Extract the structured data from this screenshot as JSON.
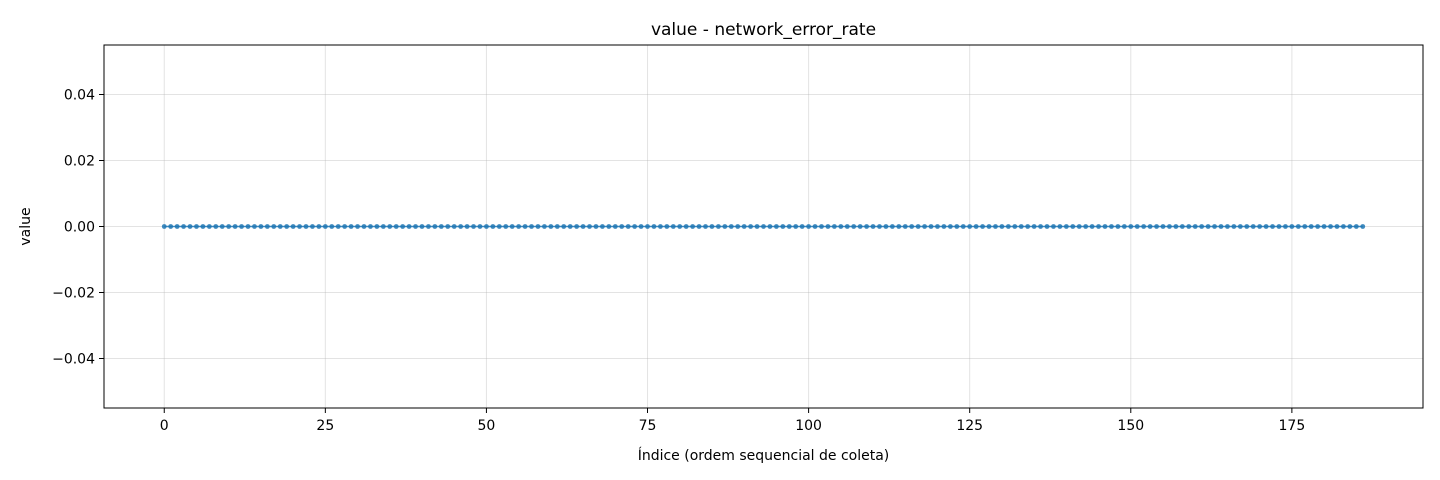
{
  "chart_data": {
    "type": "line",
    "title": "value - network_error_rate",
    "xlabel": "Índice (ordem sequencial de coleta)",
    "ylabel": "value",
    "xlim": [
      -9.35,
      195.35
    ],
    "ylim": [
      -0.055,
      0.055
    ],
    "x_ticks": [
      0,
      25,
      50,
      75,
      100,
      125,
      150,
      175
    ],
    "y_ticks": [
      -0.04,
      -0.02,
      0.0,
      0.02,
      0.04
    ],
    "x_tick_labels": [
      "0",
      "25",
      "50",
      "75",
      "100",
      "125",
      "150",
      "175"
    ],
    "y_tick_labels": [
      "−0.04",
      "−0.02",
      "0.00",
      "0.02",
      "0.04"
    ],
    "grid": true,
    "legend": "none",
    "series": [
      {
        "x_start": 0,
        "x_end": 186,
        "x_step": 1,
        "constant_value": 0.0,
        "color": "#1f77b4",
        "marker": "circle"
      }
    ]
  }
}
